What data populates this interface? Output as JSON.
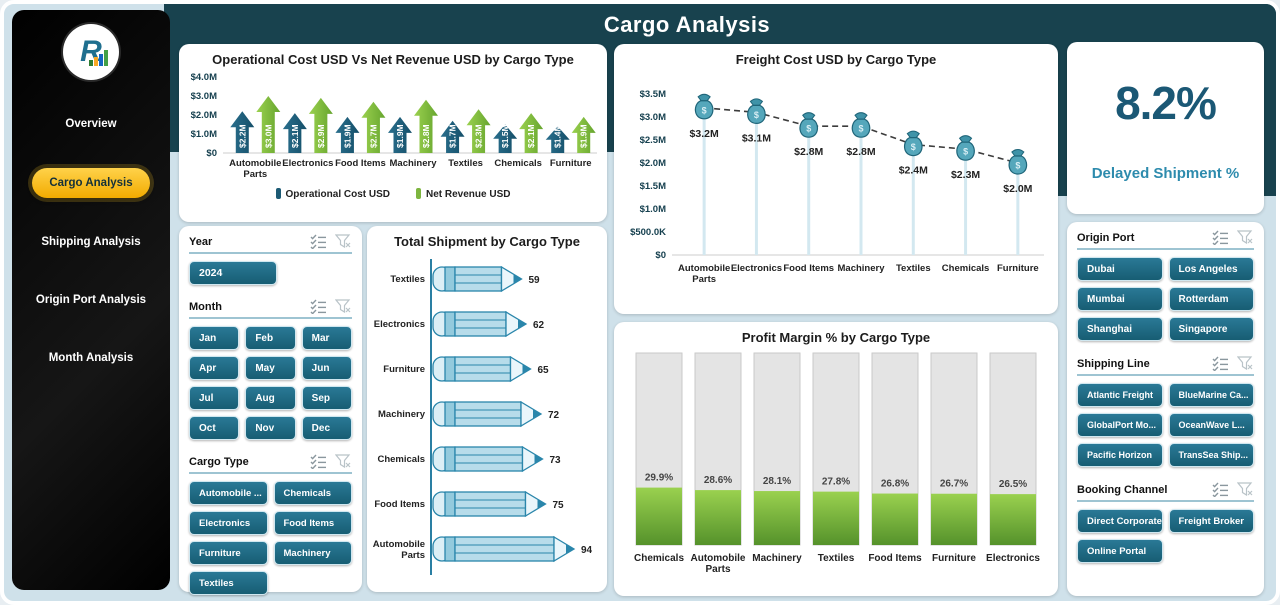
{
  "header": {
    "title": "Cargo Analysis"
  },
  "sidebar": {
    "items": [
      {
        "label": "Overview",
        "active": false
      },
      {
        "label": "Cargo Analysis",
        "active": true
      },
      {
        "label": "Shipping Analysis",
        "active": false
      },
      {
        "label": "Origin Port  Analysis",
        "active": false
      },
      {
        "label": "Month Analysis",
        "active": false
      }
    ]
  },
  "kpi": {
    "value": "8.2%",
    "label": "Delayed Shipment %"
  },
  "icons": {
    "multi_select": "checklist-icon",
    "clear_filter": "funnel-x-icon"
  },
  "filters_left": {
    "year": {
      "label": "Year",
      "options": [
        "2024"
      ]
    },
    "month": {
      "label": "Month",
      "options": [
        "Jan",
        "Feb",
        "Mar",
        "Apr",
        "May",
        "Jun",
        "Jul",
        "Aug",
        "Sep",
        "Oct",
        "Nov",
        "Dec"
      ]
    },
    "cargo_type": {
      "label": "Cargo Type",
      "options": [
        "Automobile ...",
        "Chemicals",
        "Electronics",
        "Food Items",
        "Furniture",
        "Machinery",
        "Textiles"
      ]
    }
  },
  "filters_right": {
    "origin_port": {
      "label": "Origin Port",
      "options": [
        "Dubai",
        "Los Angeles",
        "Mumbai",
        "Rotterdam",
        "Shanghai",
        "Singapore"
      ]
    },
    "shipping_line": {
      "label": "Shipping Line",
      "options": [
        "Atlantic Freight",
        "BlueMarine Ca...",
        "GlobalPort Mo...",
        "OceanWave L...",
        "Pacific Horizon",
        "TransSea Ship..."
      ]
    },
    "booking_channel": {
      "label": "Booking Channel",
      "options": [
        "Direct Corporate",
        "Freight Broker",
        "Online Portal"
      ]
    }
  },
  "chart_data": [
    {
      "id": "opcost",
      "type": "bar",
      "title": "Operational Cost USD Vs Net Revenue USD by Cargo Type",
      "categories": [
        "Automobile Parts",
        "Electronics",
        "Food Items",
        "Machinery",
        "Textiles",
        "Chemicals",
        "Furniture"
      ],
      "series": [
        {
          "name": "Operational Cost USD",
          "values": [
            2.2,
            2.1,
            1.9,
            1.9,
            1.7,
            1.5,
            1.4
          ],
          "labels": [
            "$2.2M",
            "$2.1M",
            "$1.9M",
            "$1.9M",
            "$1.7M",
            "$1.5M",
            "$1.4M"
          ],
          "color": "#1c5a74"
        },
        {
          "name": "Net Revenue USD",
          "values": [
            3.0,
            2.9,
            2.7,
            2.8,
            2.3,
            2.1,
            1.9
          ],
          "labels": [
            "$3.0M",
            "$2.9M",
            "$2.7M",
            "$2.8M",
            "$2.3M",
            "$2.1M",
            "$1.9M"
          ],
          "color": "#7db53f"
        }
      ],
      "ylim": [
        0,
        4
      ],
      "yticks": [
        "$0",
        "$1.0M",
        "$2.0M",
        "$3.0M",
        "$4.0M"
      ],
      "grid": false,
      "legend_position": "bottom"
    },
    {
      "id": "freight",
      "type": "line",
      "title": "Freight Cost USD by Cargo Type",
      "categories": [
        "Automobile Parts",
        "Electronics",
        "Food Items",
        "Machinery",
        "Textiles",
        "Chemicals",
        "Furniture"
      ],
      "values": [
        3.2,
        3.1,
        2.8,
        2.8,
        2.4,
        2.3,
        2.0
      ],
      "labels": [
        "$3.2M",
        "$3.1M",
        "$2.8M",
        "$2.8M",
        "$2.4M",
        "$2.3M",
        "$2.0M"
      ],
      "ylim": [
        0,
        3.5
      ],
      "yticks": [
        "$0",
        "$500.0K",
        "$1.0M",
        "$1.5M",
        "$2.0M",
        "$2.5M",
        "$3.0M",
        "$3.5M"
      ],
      "marker": "money-bag-icon",
      "line_style": "dashed",
      "grid": false
    },
    {
      "id": "shipment",
      "type": "bar-horizontal",
      "title": "Total Shipment by Cargo Type",
      "categories": [
        "Textiles",
        "Electronics",
        "Furniture",
        "Machinery",
        "Chemicals",
        "Food Items",
        "Automobile Parts"
      ],
      "values": [
        59,
        62,
        65,
        72,
        73,
        75,
        94
      ],
      "bar_shape": "pencil",
      "xlabel": "",
      "ylabel": ""
    },
    {
      "id": "profit",
      "type": "bar",
      "title": "Profit Margin % by Cargo Type",
      "categories": [
        "Chemicals",
        "Automobile Parts",
        "Machinery",
        "Textiles",
        "Food Items",
        "Furniture",
        "Electronics"
      ],
      "values": [
        29.9,
        28.6,
        28.1,
        27.8,
        26.8,
        26.7,
        26.5
      ],
      "labels": [
        "29.9%",
        "28.6%",
        "28.1%",
        "27.8%",
        "26.8%",
        "26.7%",
        "26.5%"
      ],
      "ylim": [
        0,
        100
      ],
      "bar_style": "thermometer",
      "grid": false
    }
  ],
  "colors": {
    "band_teal": "#18424e",
    "page_bg": "#cfe1ea",
    "accent_yellow": "#f7b500",
    "button_teal": "#1d6e87",
    "series_teal": "#1c5a74",
    "series_green": "#7db53f",
    "pencil_outline": "#2a86ab",
    "kpi_text": "#1b5875",
    "kpi_label": "#2d8bad"
  }
}
